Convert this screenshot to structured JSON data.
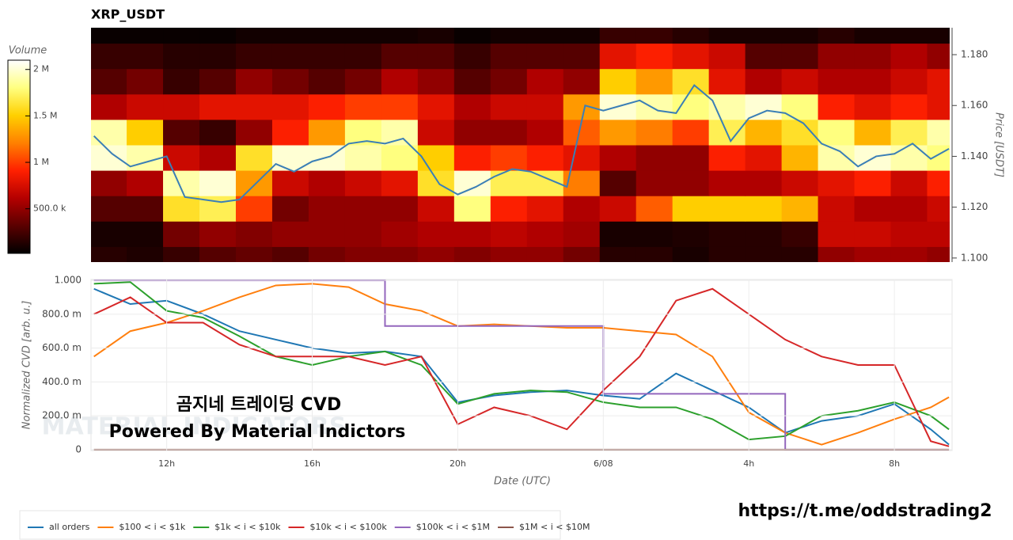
{
  "chart_data": [
    {
      "type": "heatmap",
      "title": "XRP_USDT",
      "y2label": "Price [USDT]",
      "colorbar_title": "Volume",
      "xlim": [
        9.92,
        33.52
      ],
      "ylim": [
        1.0984,
        1.1906
      ],
      "yticks": [
        {
          "value": 1.1,
          "label": "1.100"
        },
        {
          "value": 1.12,
          "label": "1.120"
        },
        {
          "value": 1.14,
          "label": "1.140"
        },
        {
          "value": 1.16,
          "label": "1.160"
        },
        {
          "value": 1.18,
          "label": "1.180"
        }
      ],
      "x_bins": [
        9.9,
        10.9,
        11.9,
        12.9,
        13.9,
        14.9,
        15.9,
        16.9,
        17.9,
        18.9,
        19.9,
        20.9,
        21.9,
        22.9,
        23.9,
        24.9,
        25.9,
        26.9,
        27.9,
        28.9,
        29.9,
        30.9,
        31.9,
        32.9,
        33.9
      ],
      "y_bins": [
        1.0945,
        1.1045,
        1.1145,
        1.1245,
        1.1345,
        1.1445,
        1.1545,
        1.1645,
        1.1745,
        1.1845,
        1.1945
      ],
      "values": [
        [
          150000,
          120000,
          200000,
          300000,
          350000,
          300000,
          400000,
          450000,
          450000,
          500000,
          450000,
          500000,
          500000,
          400000,
          150000,
          150000,
          100000,
          150000,
          150000,
          150000,
          500000,
          550000,
          550000,
          500000
        ],
        [
          100000,
          100000,
          400000,
          500000,
          450000,
          500000,
          500000,
          500000,
          550000,
          600000,
          600000,
          650000,
          600000,
          550000,
          100000,
          100000,
          120000,
          150000,
          150000,
          200000,
          700000,
          700000,
          650000,
          650000
        ],
        [
          300000,
          300000,
          1600000,
          1700000,
          1000000,
          400000,
          500000,
          500000,
          500000,
          700000,
          1800000,
          900000,
          800000,
          600000,
          700000,
          1100000,
          1500000,
          1500000,
          1500000,
          1400000,
          700000,
          600000,
          600000,
          700000
        ],
        [
          500000,
          600000,
          1900000,
          2000000,
          1300000,
          700000,
          600000,
          700000,
          800000,
          1600000,
          2000000,
          1700000,
          1700000,
          1200000,
          300000,
          500000,
          500000,
          600000,
          600000,
          700000,
          800000,
          900000,
          700000,
          900000
        ],
        [
          2000000,
          1900000,
          700000,
          600000,
          1600000,
          2000000,
          2000000,
          1900000,
          1800000,
          1500000,
          900000,
          1000000,
          900000,
          800000,
          600000,
          500000,
          500000,
          900000,
          800000,
          1400000,
          1900000,
          2000000,
          1900000,
          1800000
        ],
        [
          1900000,
          1500000,
          300000,
          200000,
          500000,
          900000,
          1300000,
          1800000,
          1900000,
          700000,
          500000,
          500000,
          600000,
          1100000,
          1300000,
          1200000,
          1000000,
          1700000,
          1400000,
          1600000,
          1800000,
          1400000,
          1700000,
          1900000
        ],
        [
          600000,
          700000,
          700000,
          800000,
          800000,
          800000,
          900000,
          1000000,
          1000000,
          800000,
          600000,
          700000,
          700000,
          1300000,
          2000000,
          1900000,
          1800000,
          1900000,
          2000000,
          1800000,
          900000,
          800000,
          900000,
          800000
        ],
        [
          300000,
          400000,
          200000,
          300000,
          500000,
          400000,
          300000,
          400000,
          600000,
          500000,
          300000,
          400000,
          600000,
          500000,
          1500000,
          1300000,
          1600000,
          800000,
          600000,
          700000,
          600000,
          600000,
          700000,
          800000
        ],
        [
          200000,
          200000,
          150000,
          150000,
          200000,
          200000,
          200000,
          200000,
          300000,
          300000,
          200000,
          300000,
          300000,
          300000,
          800000,
          900000,
          800000,
          700000,
          300000,
          300000,
          500000,
          500000,
          600000,
          500000
        ],
        [
          50000,
          50000,
          50000,
          50000,
          80000,
          80000,
          80000,
          80000,
          80000,
          100000,
          50000,
          80000,
          80000,
          80000,
          200000,
          200000,
          150000,
          100000,
          100000,
          100000,
          150000,
          100000,
          100000,
          100000
        ]
      ],
      "clim": [
        20000,
        2100000
      ],
      "cticks": [
        {
          "value": 500000,
          "label": "500.0 k"
        },
        {
          "value": 1000000,
          "label": "1 M"
        },
        {
          "value": 1500000,
          "label": "1.5 M"
        },
        {
          "value": 2000000,
          "label": "2 M"
        }
      ],
      "colormap": [
        "#000000",
        "#5a0000",
        "#b40000",
        "#ff2000",
        "#ff8000",
        "#ffd000",
        "#ffff80",
        "#ffffff"
      ],
      "overlay": {
        "type": "line",
        "color": "#3b7fb6",
        "x": [
          10,
          10.5,
          11,
          11.5,
          12,
          12.5,
          13,
          13.5,
          14,
          14.5,
          15,
          15.5,
          16,
          16.5,
          17,
          17.5,
          18,
          18.5,
          19,
          19.5,
          20,
          20.5,
          21,
          21.5,
          22,
          22.5,
          23,
          23.5,
          24,
          24.5,
          25,
          25.5,
          26,
          26.5,
          27,
          27.5,
          28,
          28.5,
          29,
          29.5,
          30,
          30.5,
          31,
          31.5,
          32,
          32.5,
          33,
          33.5
        ],
        "values": [
          1.148,
          1.141,
          1.136,
          1.138,
          1.14,
          1.124,
          1.123,
          1.122,
          1.123,
          1.13,
          1.137,
          1.134,
          1.138,
          1.14,
          1.145,
          1.146,
          1.145,
          1.147,
          1.14,
          1.129,
          1.125,
          1.128,
          1.132,
          1.135,
          1.134,
          1.131,
          1.128,
          1.16,
          1.158,
          1.16,
          1.162,
          1.158,
          1.157,
          1.168,
          1.162,
          1.146,
          1.155,
          1.158,
          1.157,
          1.153,
          1.145,
          1.142,
          1.136,
          1.14,
          1.141,
          1.145,
          1.139,
          1.143
        ]
      }
    },
    {
      "type": "line",
      "xlabel": "Date (UTC)",
      "ylabel": "Normalized CVD [arb. u.]",
      "grid": true,
      "xlim": [
        9.92,
        33.52
      ],
      "ylim": [
        -0.005,
        1.005
      ],
      "xticks": [
        {
          "value": 12,
          "label": "12h"
        },
        {
          "value": 16,
          "label": "16h"
        },
        {
          "value": 20,
          "label": "20h"
        },
        {
          "value": 24,
          "label": "6/08"
        },
        {
          "value": 28,
          "label": "4h"
        },
        {
          "value": 32,
          "label": "8h"
        }
      ],
      "yticks": [
        0,
        {
          "value": 0.2,
          "label": "200.0 m"
        },
        {
          "value": 0.4,
          "label": "400.0 m"
        },
        {
          "value": 0.6,
          "label": "600.0 m"
        },
        {
          "value": 0.8,
          "label": "800.0 m"
        },
        {
          "value": 1,
          "label": "1.000"
        }
      ],
      "x": [
        10,
        11,
        12,
        13,
        14,
        15,
        16,
        17,
        18,
        19,
        20,
        21,
        22,
        23,
        24,
        25,
        26,
        27,
        28,
        29,
        30,
        31,
        32,
        33,
        33.5
      ],
      "series": [
        {
          "name": "all orders",
          "color": "#1f77b4",
          "values": [
            0.95,
            0.86,
            0.88,
            0.8,
            0.7,
            0.65,
            0.6,
            0.57,
            0.58,
            0.55,
            0.28,
            0.32,
            0.34,
            0.35,
            0.32,
            0.3,
            0.45,
            0.35,
            0.25,
            0.1,
            0.17,
            0.2,
            0.27,
            0.12,
            0.03
          ]
        },
        {
          "name": "$100 < i < $1k",
          "color": "#ff7f0e",
          "values": [
            0.55,
            0.7,
            0.75,
            0.82,
            0.9,
            0.97,
            0.98,
            0.96,
            0.86,
            0.82,
            0.73,
            0.74,
            0.73,
            0.72,
            0.72,
            0.7,
            0.68,
            0.55,
            0.22,
            0.1,
            0.03,
            0.1,
            0.18,
            0.25,
            0.31
          ]
        },
        {
          "name": "$1k < i < $10k",
          "color": "#2ca02c",
          "values": [
            0.98,
            0.99,
            0.82,
            0.78,
            0.67,
            0.55,
            0.5,
            0.55,
            0.58,
            0.5,
            0.27,
            0.33,
            0.35,
            0.34,
            0.28,
            0.25,
            0.25,
            0.18,
            0.06,
            0.08,
            0.2,
            0.23,
            0.28,
            0.2,
            0.12
          ]
        },
        {
          "name": "$10k < i < $100k",
          "color": "#d62728",
          "values": [
            0.8,
            0.9,
            0.75,
            0.75,
            0.62,
            0.55,
            0.55,
            0.55,
            0.5,
            0.55,
            0.15,
            0.25,
            0.2,
            0.12,
            0.35,
            0.55,
            0.88,
            0.95,
            0.8,
            0.65,
            0.55,
            0.5,
            0.5,
            0.05,
            0.02
          ]
        },
        {
          "name": "$100k < i < $1M",
          "color": "#9467bd",
          "step": true,
          "values": [
            1,
            1,
            1,
            1,
            1,
            1,
            1,
            1,
            0.73,
            0.73,
            0.73,
            0.73,
            0.73,
            0.73,
            0.33,
            0.33,
            0.33,
            0.33,
            0.33,
            0,
            0,
            0,
            0,
            0,
            0
          ]
        },
        {
          "name": "$1M < i < $10M",
          "color": "#8c564b",
          "values": [
            0,
            0,
            0,
            0,
            0,
            0,
            0,
            0,
            0,
            0,
            0,
            0,
            0,
            0,
            0,
            0,
            0,
            0,
            0,
            0,
            0,
            0,
            0,
            0,
            0
          ]
        }
      ]
    }
  ],
  "watermark": {
    "logo": "MATERIAL INDICATORS",
    "line1": "곰지네 트레이딩 CVD",
    "line2": "Powered By Material Indictors",
    "url": "https://t.me/oddstrading2"
  }
}
